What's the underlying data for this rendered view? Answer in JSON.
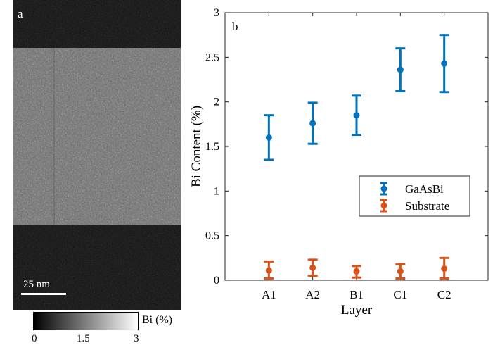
{
  "left_panel": {
    "label": "a",
    "scale_bar": "25 nm",
    "colorbar": {
      "label": "Bi (%)",
      "ticks": [
        "0",
        "1.5",
        "3"
      ],
      "range": [
        0,
        3
      ]
    }
  },
  "colors": {
    "gaasbi": "#0072BD",
    "substrate": "#D95319"
  },
  "chart_data": {
    "type": "scatter",
    "panel_label": "b",
    "xlabel": "Layer",
    "ylabel": "Bi Content (%)",
    "categories": [
      "A1",
      "A2",
      "B1",
      "C1",
      "C2"
    ],
    "ylim": [
      0,
      3
    ],
    "yticks": [
      "0",
      "0.5",
      "1",
      "1.5",
      "2",
      "2.5",
      "3"
    ],
    "grid": false,
    "legend_position": "center-right",
    "series": [
      {
        "name": "GaAsBi",
        "color": "#0072BD",
        "values": [
          1.6,
          1.76,
          1.85,
          2.36,
          2.43
        ],
        "lower": [
          1.35,
          1.53,
          1.63,
          2.12,
          2.11
        ],
        "upper": [
          1.85,
          1.99,
          2.07,
          2.6,
          2.75
        ]
      },
      {
        "name": "Substrate",
        "color": "#D95319",
        "values": [
          0.11,
          0.14,
          0.1,
          0.1,
          0.13
        ],
        "lower": [
          0.02,
          0.05,
          0.03,
          0.02,
          0.02
        ],
        "upper": [
          0.21,
          0.23,
          0.16,
          0.18,
          0.25
        ]
      }
    ]
  }
}
